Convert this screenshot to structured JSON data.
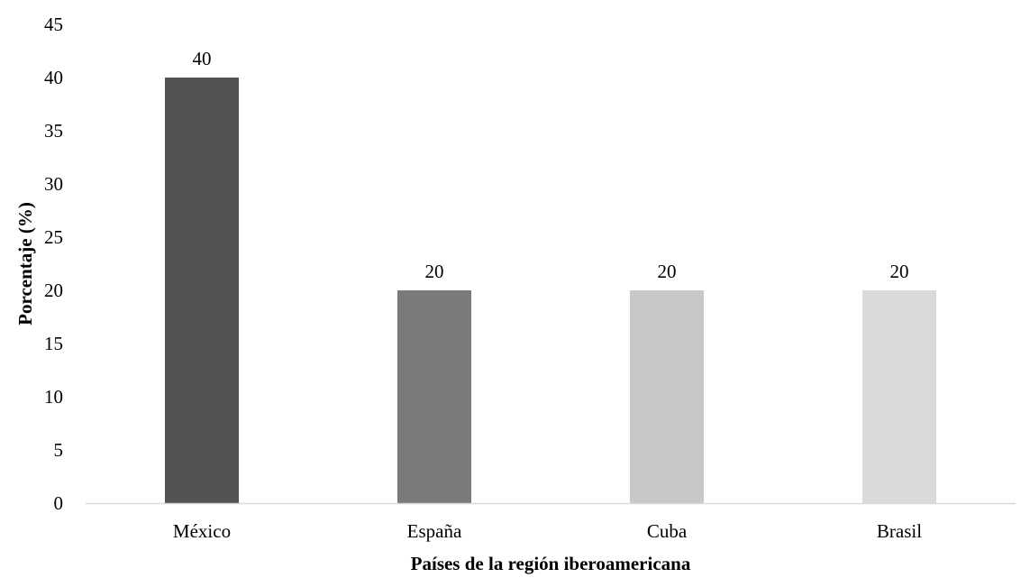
{
  "chart_data": {
    "type": "bar",
    "title": "",
    "xlabel": "Países de la  región iberoamericana",
    "ylabel": "Porcentaje  (%)",
    "categories": [
      "México",
      "España",
      "Cuba",
      "Brasil"
    ],
    "values": [
      40,
      20,
      20,
      20
    ],
    "data_labels": [
      "40",
      "20",
      "20",
      "20"
    ],
    "bar_colors": [
      "#525252",
      "#7a7a7a",
      "#c8c8c8",
      "#dadada"
    ],
    "axis_color": "#d9d9d9",
    "ylim": [
      0,
      45
    ],
    "yticks": [
      0,
      5,
      10,
      15,
      20,
      25,
      30,
      35,
      40,
      45
    ],
    "grid": false,
    "legend": "none"
  }
}
